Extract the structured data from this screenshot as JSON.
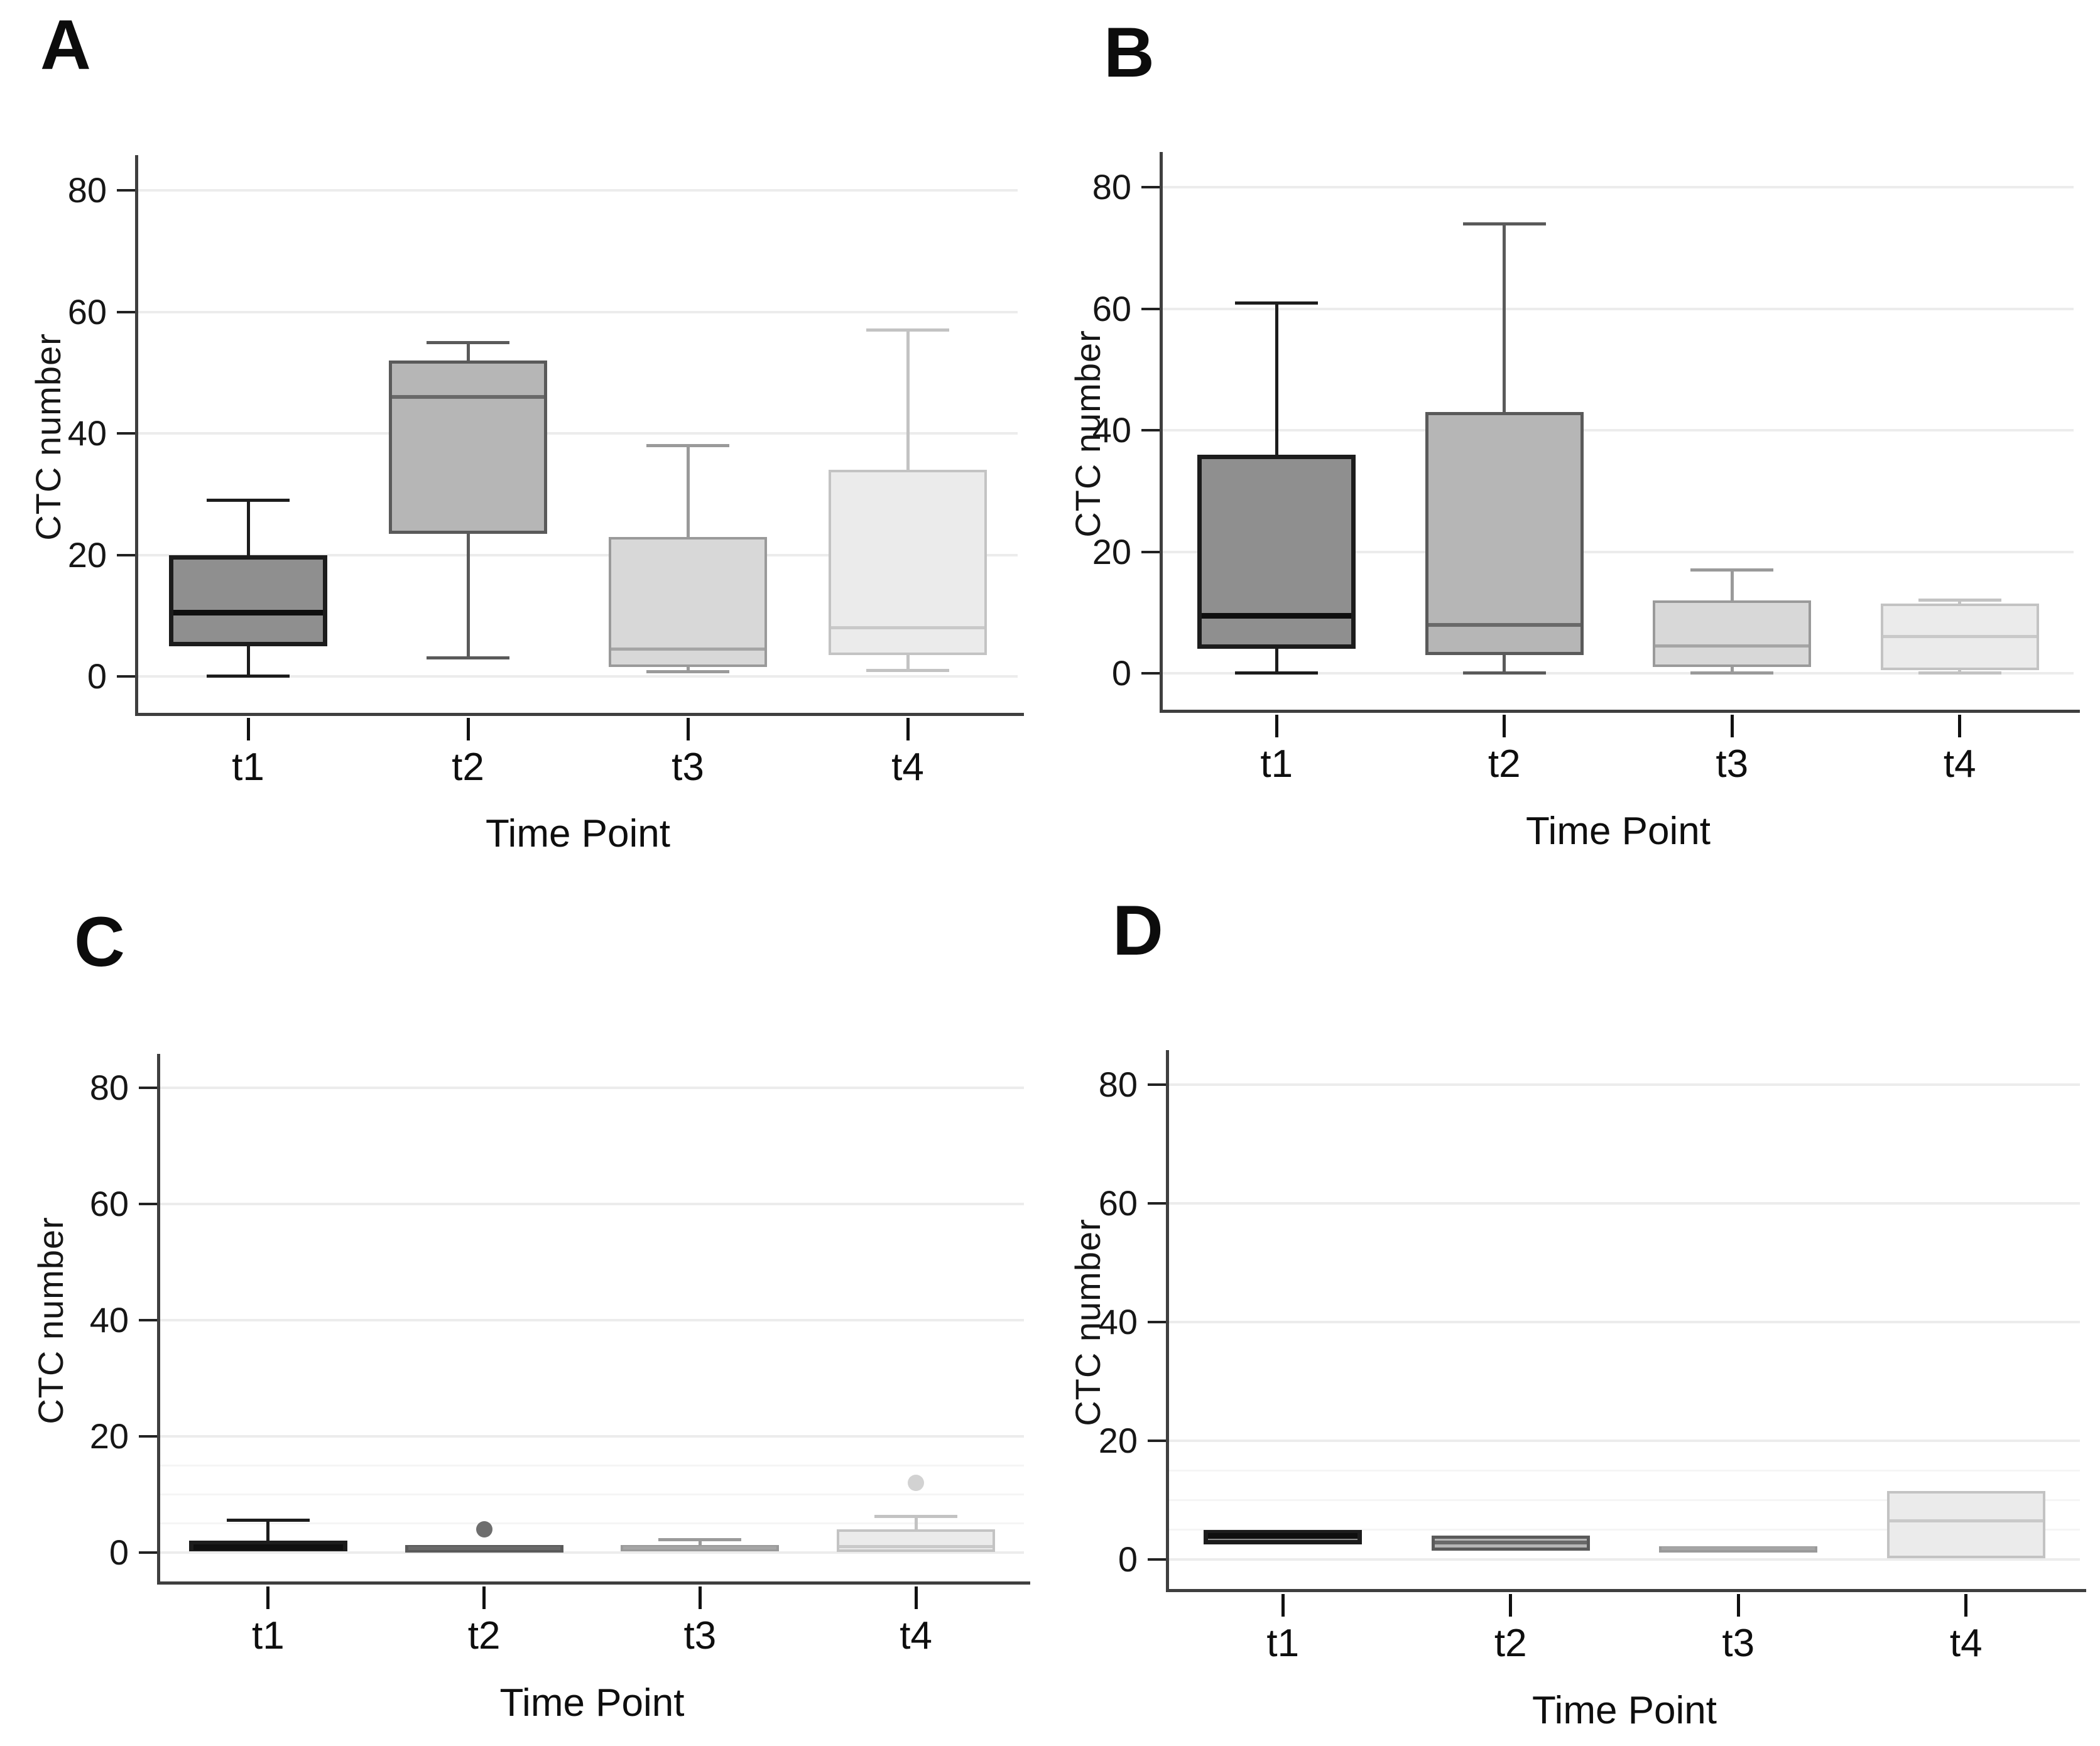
{
  "figure": {
    "background": "#ffffff",
    "panels_order": [
      "A",
      "B",
      "C",
      "D"
    ]
  },
  "style": {
    "box_fills": [
      "#8f8f8f",
      "#b6b6b6",
      "#d8d8d8",
      "#ebebeb"
    ],
    "box_borders": [
      "#1c1c1c",
      "#5a5a5a",
      "#9a9a9a",
      "#c3c3c3"
    ],
    "median_colors": [
      "#0f0f0f",
      "#696969",
      "#a5a5a5",
      "#c9c9c9"
    ],
    "gridline_color": "#ececec",
    "minor_gridline_color": "#f5f5f5",
    "axis_color": "#3f3f3f",
    "tick_color": "#222222",
    "text_color": "#111111"
  },
  "chart_data": [
    {
      "panel_label": "A",
      "type": "box",
      "xlabel": "Time Point",
      "ylabel": "CTC number",
      "ylim": [
        -6,
        85
      ],
      "yticks": [
        0,
        20,
        40,
        60,
        80
      ],
      "minor_gridlines": [],
      "grid": true,
      "legend": "none",
      "categories": [
        "t1",
        "t2",
        "t3",
        "t4"
      ],
      "boxes": [
        {
          "category": "t1",
          "min": 0,
          "q1": 5,
          "median": 10.5,
          "q3": 20,
          "max": 29,
          "outliers": []
        },
        {
          "category": "t2",
          "min": 3,
          "q1": 23.5,
          "median": 46,
          "q3": 52,
          "max": 55,
          "outliers": []
        },
        {
          "category": "t3",
          "min": 0.8,
          "q1": 1.5,
          "median": 4.5,
          "q3": 23,
          "max": 38,
          "outliers": []
        },
        {
          "category": "t4",
          "min": 1,
          "q1": 3.5,
          "median": 8,
          "q3": 34,
          "max": 57,
          "outliers": []
        }
      ]
    },
    {
      "panel_label": "B",
      "type": "box",
      "xlabel": "Time Point",
      "ylabel": "CTC number",
      "ylim": [
        -6,
        85
      ],
      "yticks": [
        0,
        20,
        40,
        60,
        80
      ],
      "minor_gridlines": [],
      "grid": true,
      "legend": "none",
      "categories": [
        "t1",
        "t2",
        "t3",
        "t4"
      ],
      "boxes": [
        {
          "category": "t1",
          "min": 0,
          "q1": 4,
          "median": 9.5,
          "q3": 36,
          "max": 61,
          "outliers": []
        },
        {
          "category": "t2",
          "min": 0,
          "q1": 3,
          "median": 8,
          "q3": 43,
          "max": 74,
          "outliers": []
        },
        {
          "category": "t3",
          "min": 0,
          "q1": 1,
          "median": 4.5,
          "q3": 12,
          "max": 17,
          "outliers": []
        },
        {
          "category": "t4",
          "min": 0,
          "q1": 0.5,
          "median": 6,
          "q3": 11.5,
          "max": 12,
          "outliers": []
        }
      ]
    },
    {
      "panel_label": "C",
      "type": "box",
      "xlabel": "Time Point",
      "ylabel": "CTC number",
      "ylim": [
        -5,
        85
      ],
      "yticks": [
        0,
        20,
        40,
        60,
        80
      ],
      "minor_gridlines": [
        5,
        10,
        15
      ],
      "grid": true,
      "legend": "none",
      "categories": [
        "t1",
        "t2",
        "t3",
        "t4"
      ],
      "boxes": [
        {
          "category": "t1",
          "min": 0.2,
          "q1": 0.2,
          "median": 0.9,
          "q3": 2,
          "max": 5.5,
          "outliers": []
        },
        {
          "category": "t2",
          "min": 0.2,
          "q1": 0.2,
          "median": 0.7,
          "q3": 1.3,
          "max": 1.3,
          "outliers": [
            4
          ],
          "outlier_color": "#6e6e6e"
        },
        {
          "category": "t3",
          "min": 0.2,
          "q1": 0.2,
          "median": 0.8,
          "q3": 1.3,
          "max": 2.2,
          "outliers": []
        },
        {
          "category": "t4",
          "min": 0.1,
          "q1": 0.1,
          "median": 1,
          "q3": 4,
          "max": 6.2,
          "outliers": [
            12
          ],
          "outlier_color": "#d2d2d2"
        }
      ]
    },
    {
      "panel_label": "D",
      "type": "box",
      "xlabel": "Time Point",
      "ylabel": "CTC number",
      "ylim": [
        -5,
        85
      ],
      "yticks": [
        0,
        20,
        40,
        60,
        80
      ],
      "minor_gridlines": [
        5,
        10,
        15
      ],
      "grid": true,
      "legend": "none",
      "categories": [
        "t1",
        "t2",
        "t3",
        "t4"
      ],
      "boxes": [
        {
          "category": "t1",
          "min": 2.5,
          "q1": 2.5,
          "median": 4,
          "q3": 5,
          "max": 5,
          "outliers": []
        },
        {
          "category": "t2",
          "min": 1.5,
          "q1": 1.5,
          "median": 2.8,
          "q3": 4,
          "max": 4,
          "outliers": []
        },
        {
          "category": "t3",
          "min": 1.4,
          "q1": 1.4,
          "median": 1.8,
          "q3": 2.2,
          "max": 2.2,
          "outliers": []
        },
        {
          "category": "t4",
          "min": 0.2,
          "q1": 0.2,
          "median": 6.5,
          "q3": 11.5,
          "max": 11.5,
          "outliers": []
        }
      ]
    }
  ]
}
